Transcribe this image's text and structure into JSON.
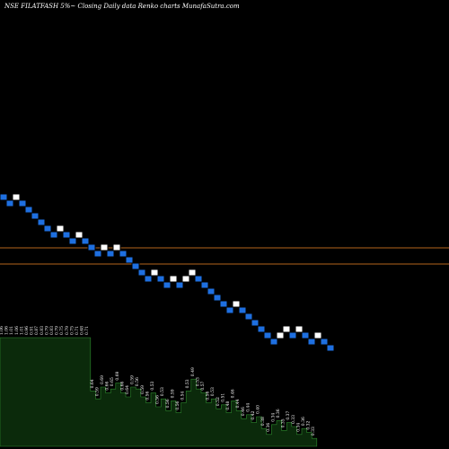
{
  "title": "NSE FILATFASH 5%~ Closing Daily data Renko charts MunafaSutra.com",
  "colors": {
    "background": "#000000",
    "down_brick": "#1e6fe0",
    "up_brick": "#ffffff",
    "brick_border": "#000000",
    "reference_line": "#b5651d",
    "volume_fill": "#0b2a0b",
    "volume_edge": "#2e8b2e"
  },
  "chart_data": {
    "type": "renko",
    "brick_size_percent": 5,
    "bricks": [
      {
        "dir": "down",
        "close": 1.06
      },
      {
        "dir": "down",
        "close": 1.01
      },
      {
        "dir": "up",
        "close": 1.06
      },
      {
        "dir": "down",
        "close": 1.01
      },
      {
        "dir": "down",
        "close": 0.96
      },
      {
        "dir": "down",
        "close": 0.91
      },
      {
        "dir": "down",
        "close": 0.87
      },
      {
        "dir": "down",
        "close": 0.83
      },
      {
        "dir": "down",
        "close": 0.79
      },
      {
        "dir": "up",
        "close": 0.83
      },
      {
        "dir": "down",
        "close": 0.79
      },
      {
        "dir": "down",
        "close": 0.75
      },
      {
        "dir": "up",
        "close": 0.79
      },
      {
        "dir": "down",
        "close": 0.75
      },
      {
        "dir": "down",
        "close": 0.71
      },
      {
        "dir": "down",
        "close": 0.68
      },
      {
        "dir": "up",
        "close": 0.71
      },
      {
        "dir": "down",
        "close": 0.68
      },
      {
        "dir": "up",
        "close": 0.71
      },
      {
        "dir": "down",
        "close": 0.68
      },
      {
        "dir": "down",
        "close": 0.65
      },
      {
        "dir": "down",
        "close": 0.62
      },
      {
        "dir": "down",
        "close": 0.59
      },
      {
        "dir": "down",
        "close": 0.56
      },
      {
        "dir": "up",
        "close": 0.59
      },
      {
        "dir": "down",
        "close": 0.56
      },
      {
        "dir": "down",
        "close": 0.53
      },
      {
        "dir": "up",
        "close": 0.56
      },
      {
        "dir": "down",
        "close": 0.53
      },
      {
        "dir": "up",
        "close": 0.56
      },
      {
        "dir": "up",
        "close": 0.59
      },
      {
        "dir": "down",
        "close": 0.56
      },
      {
        "dir": "down",
        "close": 0.53
      },
      {
        "dir": "down",
        "close": 0.5
      },
      {
        "dir": "down",
        "close": 0.48
      },
      {
        "dir": "down",
        "close": 0.46
      },
      {
        "dir": "down",
        "close": 0.44
      },
      {
        "dir": "up",
        "close": 0.46
      },
      {
        "dir": "down",
        "close": 0.44
      },
      {
        "dir": "down",
        "close": 0.42
      },
      {
        "dir": "down",
        "close": 0.4
      },
      {
        "dir": "down",
        "close": 0.38
      },
      {
        "dir": "down",
        "close": 0.36
      },
      {
        "dir": "down",
        "close": 0.34
      },
      {
        "dir": "up",
        "close": 0.36
      },
      {
        "dir": "up",
        "close": 0.38
      },
      {
        "dir": "down",
        "close": 0.36
      },
      {
        "dir": "up",
        "close": 0.38
      },
      {
        "dir": "down",
        "close": 0.36
      },
      {
        "dir": "down",
        "close": 0.34
      },
      {
        "dir": "up",
        "close": 0.36
      },
      {
        "dir": "down",
        "close": 0.34
      },
      {
        "dir": "down",
        "close": 0.32
      }
    ],
    "reference_lines": [
      0.74,
      0.67
    ],
    "price_labels": [
      "1.06",
      "1.06",
      "1.01",
      "1.06",
      "1.01",
      "0.96",
      "0.91",
      "0.87",
      "0.83",
      "0.79",
      "0.83",
      "0.79",
      "0.75",
      "0.79",
      "0.75",
      "0.71",
      "0.68",
      "0.71",
      "0.64",
      "0.59",
      "0.69",
      "0.66",
      "0.65",
      "0.69",
      "0.66",
      "0.64",
      "0.59",
      "0.56",
      "0.59",
      "0.56",
      "0.53",
      "0.56",
      "0.53",
      "0.56",
      "0.59",
      "0.56",
      "0.54",
      "0.53",
      "0.49",
      "0.53",
      "0.57",
      "0.56",
      "0.53",
      "0.52",
      "0.51",
      "0.48",
      "0.46",
      "0.44",
      "0.46",
      "0.44",
      "0.42",
      "0.40",
      "0.38",
      "0.36",
      "0.34",
      "0.36",
      "0.35",
      "0.37",
      "0.33",
      "0.34",
      "0.36",
      "0.32",
      "0.33"
    ],
    "volume": [
      55,
      55,
      55,
      55,
      55,
      55,
      55,
      55,
      55,
      55,
      55,
      55,
      55,
      55,
      55,
      55,
      55,
      55,
      28,
      24,
      30,
      27,
      29,
      32,
      27,
      25,
      30,
      29,
      25,
      22,
      27,
      20,
      24,
      18,
      23,
      17,
      22,
      28,
      34,
      29,
      27,
      22,
      24,
      19,
      21,
      17,
      23,
      18,
      14,
      16,
      12,
      15,
      9,
      6,
      11,
      13,
      8,
      12,
      10,
      6,
      9,
      7,
      4
    ],
    "legend": "none",
    "grid": false
  }
}
